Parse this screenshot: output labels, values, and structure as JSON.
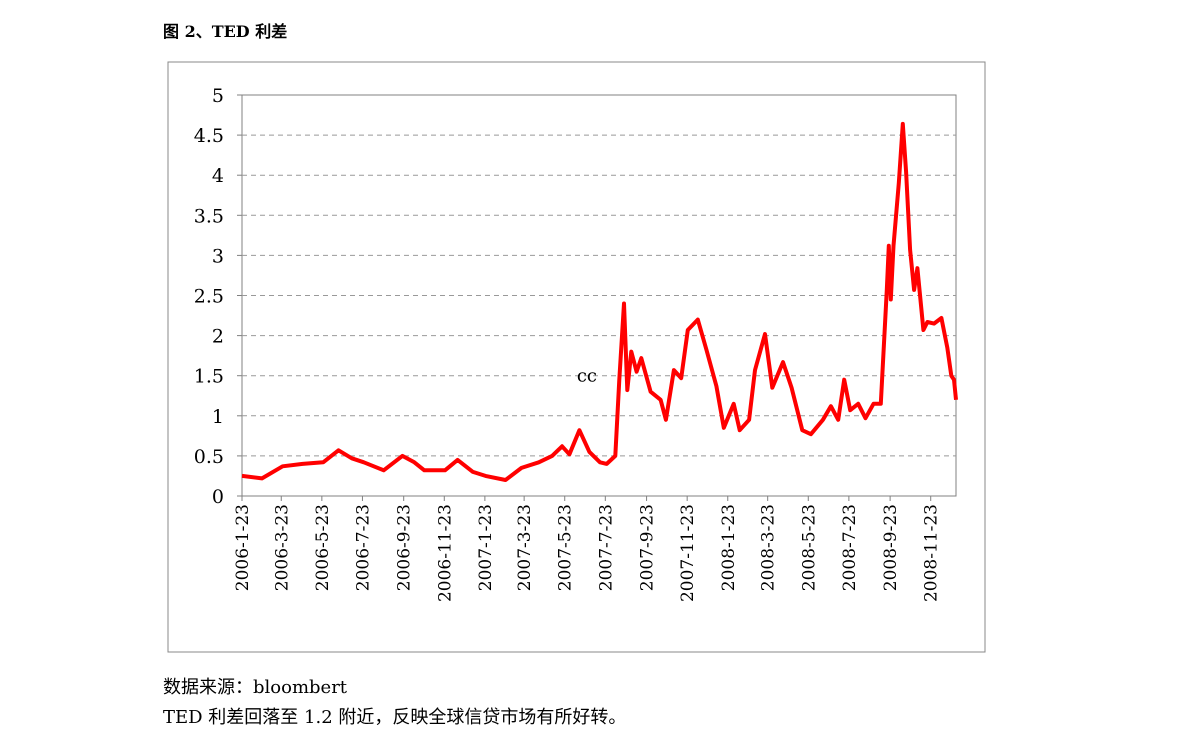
{
  "title": "图 2、TED 利差",
  "chart_data": {
    "type": "line",
    "x": [
      "2006-01-23",
      "2006-02-22",
      "2006-03-25",
      "2006-04-24",
      "2006-05-25",
      "2006-06-17",
      "2006-07-07",
      "2006-07-25",
      "2006-08-24",
      "2006-09-21",
      "2006-10-09",
      "2006-10-24",
      "2006-11-24",
      "2006-12-13",
      "2007-01-05",
      "2007-01-24",
      "2007-02-23",
      "2007-03-19",
      "2007-04-14",
      "2007-05-04",
      "2007-05-19",
      "2007-05-30",
      "2007-06-14",
      "2007-06-29",
      "2007-07-15",
      "2007-07-25",
      "2007-08-07",
      "2007-08-13",
      "2007-08-20",
      "2007-08-25",
      "2007-08-31",
      "2007-09-08",
      "2007-09-15",
      "2007-09-29",
      "2007-10-14",
      "2007-10-22",
      "2007-11-03",
      "2007-11-14",
      "2007-11-24",
      "2007-12-09",
      "2007-12-22",
      "2008-01-06",
      "2008-01-17",
      "2008-02-01",
      "2008-02-10",
      "2008-02-24",
      "2008-03-04",
      "2008-03-19",
      "2008-03-30",
      "2008-04-15",
      "2008-04-28",
      "2008-05-14",
      "2008-05-27",
      "2008-06-14",
      "2008-06-26",
      "2008-07-07",
      "2008-07-16",
      "2008-07-25",
      "2008-08-06",
      "2008-08-17",
      "2008-08-29",
      "2008-09-09",
      "2008-09-18",
      "2008-09-21",
      "2008-09-24",
      "2008-09-28",
      "2008-10-06",
      "2008-10-12",
      "2008-10-17",
      "2008-10-23",
      "2008-10-29",
      "2008-11-03",
      "2008-11-12",
      "2008-11-18",
      "2008-11-28",
      "2008-12-09",
      "2008-12-18",
      "2008-12-24",
      "2008-12-28",
      "2008-12-31"
    ],
    "series": [
      {
        "color": "#ff0000",
        "values": [
          0.25,
          0.22,
          0.37,
          0.4,
          0.42,
          0.57,
          0.47,
          0.42,
          0.32,
          0.5,
          0.42,
          0.32,
          0.32,
          0.45,
          0.3,
          0.25,
          0.2,
          0.35,
          0.42,
          0.5,
          0.62,
          0.52,
          0.82,
          0.55,
          0.42,
          0.4,
          0.5,
          1.45,
          2.4,
          1.32,
          1.8,
          1.55,
          1.72,
          1.3,
          1.2,
          0.95,
          1.57,
          1.47,
          2.07,
          2.2,
          1.82,
          1.37,
          0.85,
          1.15,
          0.82,
          0.95,
          1.57,
          2.02,
          1.35,
          1.67,
          1.35,
          0.82,
          0.77,
          0.95,
          1.12,
          0.95,
          1.45,
          1.07,
          1.15,
          0.97,
          1.15,
          1.15,
          2.57,
          3.12,
          2.45,
          3.12,
          3.9,
          4.64,
          4.04,
          3.07,
          2.57,
          2.84,
          2.07,
          2.17,
          2.15,
          2.22,
          1.85,
          1.5,
          1.45,
          1.2
        ]
      }
    ],
    "xlim": [
      "2006-01-23",
      "2008-12-31"
    ],
    "xticks": [
      {
        "value": "2006-01-23",
        "label": "2006-1-23"
      },
      {
        "value": "2006-03-23",
        "label": "2006-3-23"
      },
      {
        "value": "2006-05-23",
        "label": "2006-5-23"
      },
      {
        "value": "2006-07-23",
        "label": "2006-7-23"
      },
      {
        "value": "2006-09-23",
        "label": "2006-9-23"
      },
      {
        "value": "2006-11-23",
        "label": "2006-11-23"
      },
      {
        "value": "2007-01-23",
        "label": "2007-1-23"
      },
      {
        "value": "2007-03-23",
        "label": "2007-3-23"
      },
      {
        "value": "2007-05-23",
        "label": "2007-5-23"
      },
      {
        "value": "2007-07-23",
        "label": "2007-7-23"
      },
      {
        "value": "2007-09-23",
        "label": "2007-9-23"
      },
      {
        "value": "2007-11-23",
        "label": "2007-11-23"
      },
      {
        "value": "2008-01-23",
        "label": "2008-1-23"
      },
      {
        "value": "2008-03-23",
        "label": "2008-3-23"
      },
      {
        "value": "2008-05-23",
        "label": "2008-5-23"
      },
      {
        "value": "2008-07-23",
        "label": "2008-7-23"
      },
      {
        "value": "2008-09-23",
        "label": "2008-9-23"
      },
      {
        "value": "2008-11-23",
        "label": "2008-11-23"
      }
    ],
    "ylim": [
      0,
      5
    ],
    "yticks": [
      0,
      0.5,
      1,
      1.5,
      2,
      2.5,
      3,
      3.5,
      4,
      4.5,
      5
    ],
    "grid": true,
    "annotations": [
      {
        "text": "cc",
        "x": "2007-07-15",
        "y": 1.5
      }
    ]
  },
  "source": "数据来源：bloombert",
  "note": "TED 利差回落至 1.2 附近，反映全球信贷市场有所好转。"
}
